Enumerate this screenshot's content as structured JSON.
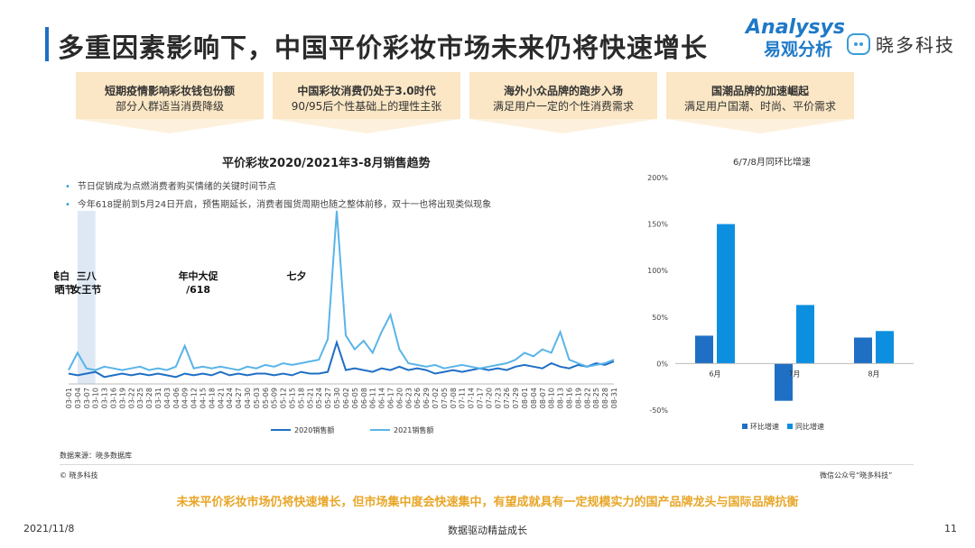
{
  "header": {
    "title": "多重因素影响下，中国平价彩妆市场未来仍将快速增长",
    "logo_en": "Analysys",
    "logo_cn": "易观分析",
    "logo2": "晓多科技"
  },
  "drivers": [
    {
      "line1": "短期疫情影响彩妆钱包份额",
      "line2": "部分人群适当消费降级"
    },
    {
      "line1": "中国彩妆消费仍处于3.0时代",
      "line2": "90/95后个性基础上的理性主张"
    },
    {
      "line1": "海外小众品牌的跑步入场",
      "line2": "满足用户一定的个性消费需求"
    },
    {
      "line1": "国潮品牌的加速崛起",
      "line2": "满足用户国潮、时尚、平价需求"
    }
  ],
  "main_chart": {
    "title": "平价彩妆2020/2021年3-8月销售趋势",
    "bullets": [
      "节日促销成为点燃消费者购买情绪的关键时间节点",
      "今年618提前到5月24日开启，预售期延长，消费者囤货周期也随之整体前移，双十一也将出现类似现象"
    ],
    "events": [
      {
        "label_lines": [
          "三八",
          "女王节"
        ],
        "start": "03-04",
        "end": "03-10"
      },
      {
        "label_lines": [
          "美白",
          "防晒节"
        ],
        "start": "04-08",
        "end": "04-14"
      },
      {
        "label_lines": [
          "年中大促",
          "/618"
        ],
        "start": "05-30",
        "end": "06-18"
      },
      {
        "label_lines": [
          "七夕"
        ],
        "start": "08-04",
        "end": "08-14"
      }
    ]
  },
  "chart_data": [
    {
      "type": "line",
      "title": "平价彩妆2020/2021年3-8月销售趋势",
      "x_ticks": [
        "03-01",
        "03-04",
        "03-07",
        "03-10",
        "03-13",
        "03-16",
        "03-19",
        "03-22",
        "03-25",
        "03-28",
        "03-31",
        "04-03",
        "04-06",
        "04-09",
        "04-12",
        "04-15",
        "04-18",
        "04-21",
        "04-24",
        "04-27",
        "04-30",
        "05-03",
        "05-06",
        "05-09",
        "05-12",
        "05-15",
        "05-18",
        "05-21",
        "05-24",
        "05-27",
        "05-30",
        "06-02",
        "06-05",
        "06-08",
        "06-11",
        "06-14",
        "06-17",
        "06-20",
        "06-23",
        "06-26",
        "06-29",
        "07-02",
        "07-05",
        "07-08",
        "07-11",
        "07-14",
        "07-17",
        "07-20",
        "07-23",
        "07-26",
        "07-29",
        "08-01",
        "08-04",
        "08-07",
        "08-10",
        "08-13",
        "08-16",
        "08-19",
        "08-22",
        "08-25",
        "08-28",
        "08-31"
      ],
      "series": [
        {
          "name": "2020销售额",
          "color": "#1f6fc5",
          "values": [
            6,
            5,
            6,
            7,
            4,
            5,
            6,
            5,
            6,
            5,
            6,
            5,
            4,
            6,
            5,
            6,
            5,
            7,
            5,
            6,
            5,
            6,
            6,
            5,
            6,
            5,
            7,
            6,
            6,
            7,
            24,
            8,
            9,
            8,
            7,
            9,
            8,
            10,
            8,
            9,
            8,
            6,
            7,
            8,
            7,
            8,
            9,
            8,
            9,
            8,
            10,
            11,
            10,
            9,
            12,
            10,
            9,
            11,
            10,
            12,
            11,
            13
          ]
        },
        {
          "name": "2021销售额",
          "color": "#5ab4e8",
          "values": [
            8,
            18,
            9,
            8,
            10,
            9,
            8,
            9,
            10,
            8,
            9,
            8,
            10,
            22,
            9,
            10,
            9,
            10,
            9,
            8,
            10,
            9,
            11,
            10,
            12,
            11,
            12,
            13,
            14,
            26,
            100,
            28,
            20,
            25,
            18,
            30,
            40,
            20,
            12,
            11,
            10,
            11,
            9,
            10,
            11,
            10,
            9,
            10,
            11,
            12,
            14,
            18,
            16,
            20,
            18,
            30,
            14,
            12,
            10,
            11,
            12,
            14
          ]
        }
      ],
      "ylim": [
        0,
        100
      ],
      "legend": "bottom"
    },
    {
      "type": "bar",
      "title": "6/7/8月同环比增速",
      "categories": [
        "6月",
        "7月",
        "8月"
      ],
      "series": [
        {
          "name": "环比增速",
          "color": "#1f6fc5",
          "values": [
            30,
            -40,
            28
          ]
        },
        {
          "name": "同比增速",
          "color": "#0d8fe0",
          "values": [
            150,
            63,
            35
          ]
        }
      ],
      "ylim": [
        -50,
        200
      ],
      "yticks": [
        "200%",
        "150%",
        "100%",
        "50%",
        "0%",
        "-50%"
      ],
      "legend": "bottom"
    }
  ],
  "footer": {
    "source": "数据来源：晓多数据库",
    "copyright": "© 晓多科技",
    "wechat": "微信公众号“晓多科技”",
    "conclusion": "未来平价彩妆市场仍将快速增长，但市场集中度会快速集中，有望成就具有一定规模实力的国产品牌龙头与国际品牌抗衡",
    "date": "2021/11/8",
    "tagline": "数据驱动精益成长",
    "page": "11"
  }
}
